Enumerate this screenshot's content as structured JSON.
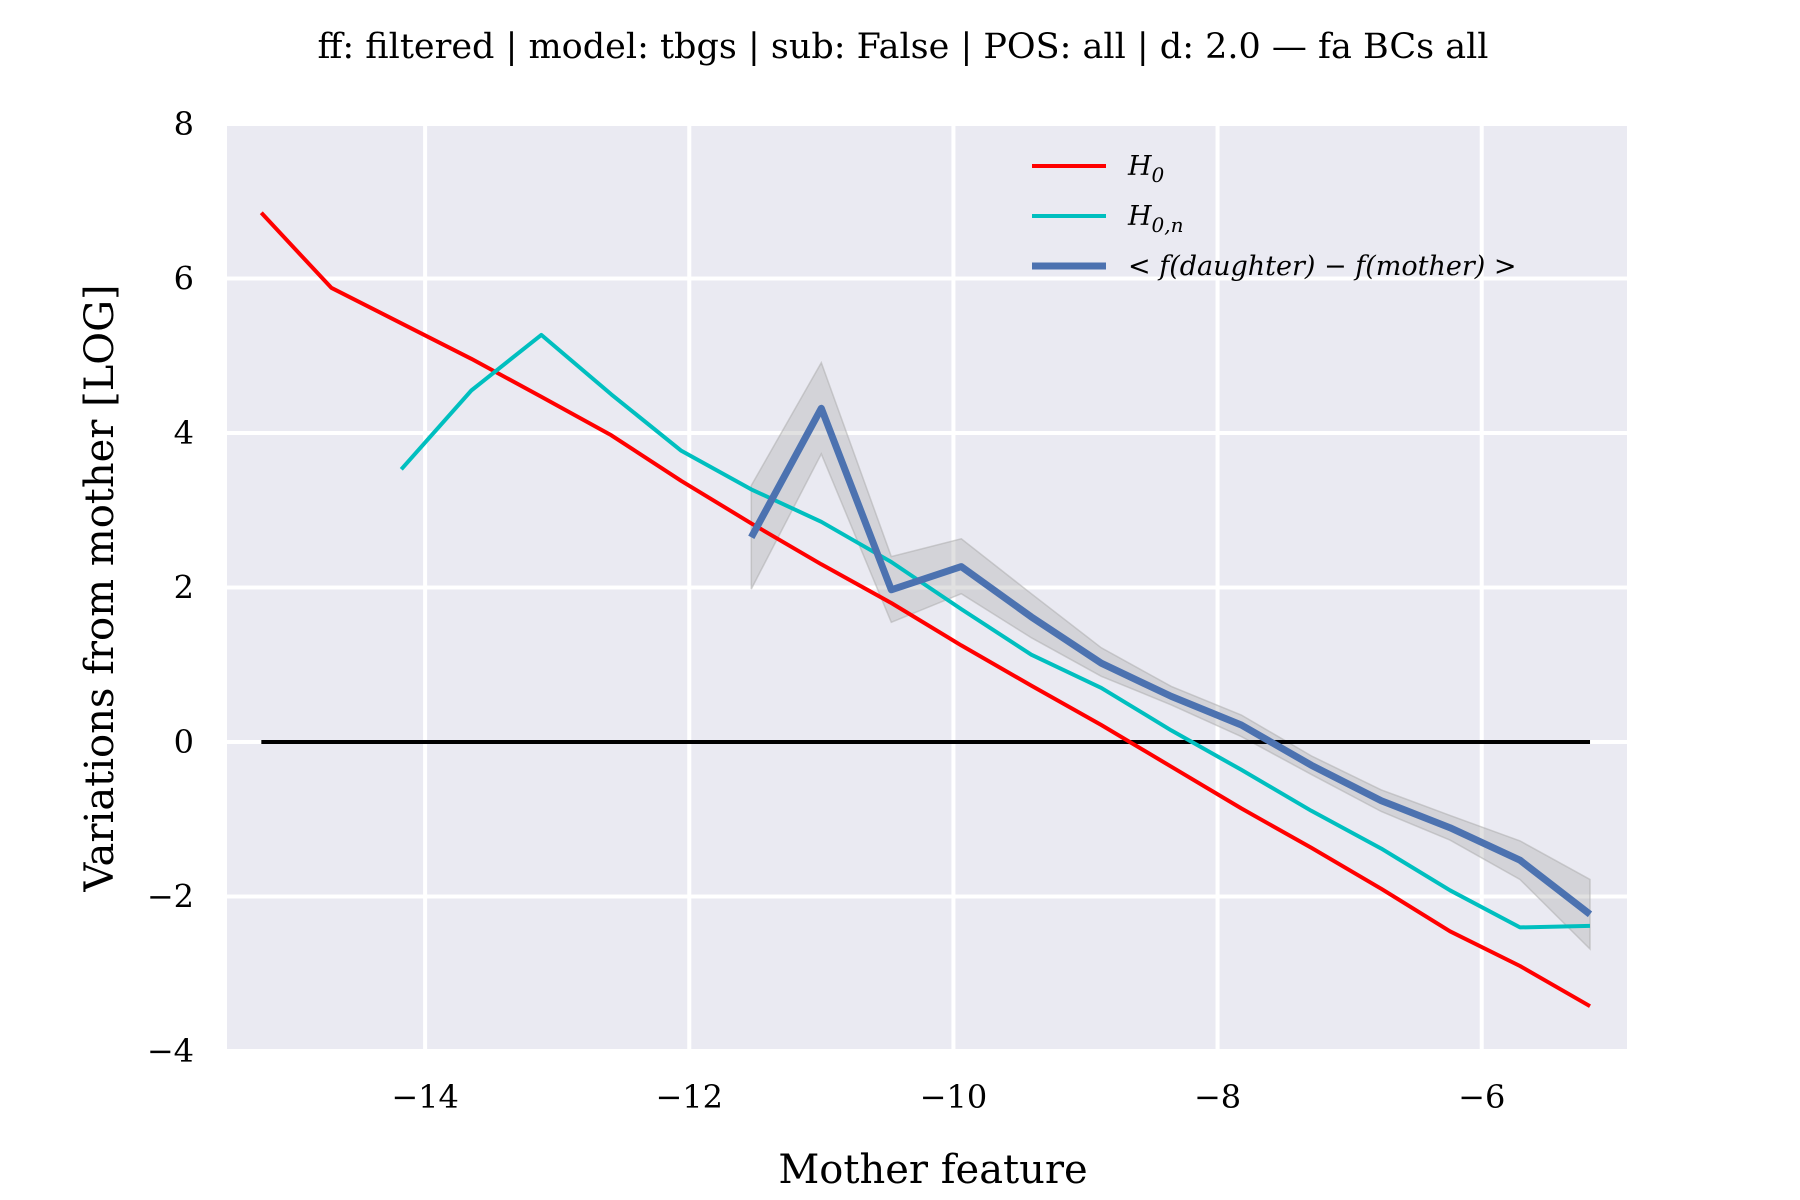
{
  "chart_data": {
    "type": "line",
    "title": "ff: filtered | model: tbgs | sub: False | POS: all | d: 2.0 — fa BCs all",
    "xlabel": "Mother feature",
    "ylabel": "Variations from mother [LOG]",
    "xlim": [
      -15.5,
      -4.9
    ],
    "ylim": [
      -4,
      8
    ],
    "xticks": [
      -14,
      -12,
      -10,
      -8,
      -6
    ],
    "yticks": [
      -4,
      -2,
      0,
      2,
      4,
      6,
      8
    ],
    "xtick_labels": [
      "−14",
      "−12",
      "−10",
      "−8",
      "−6"
    ],
    "ytick_labels": [
      "−4",
      "−2",
      "0",
      "2",
      "4",
      "6",
      "8"
    ],
    "grid": true,
    "legend_position": "top-right",
    "background_color": "#eaeaf2",
    "series": [
      {
        "name": "H_0",
        "legend_main": "H",
        "legend_sub": "0",
        "color": "#ff0000",
        "x": [
          -15.24,
          -14.71,
          -14.18,
          -13.65,
          -13.12,
          -12.59,
          -12.06,
          -11.53,
          -11.0,
          -10.47,
          -9.94,
          -9.41,
          -8.88,
          -8.35,
          -7.82,
          -7.29,
          -6.76,
          -6.24,
          -5.71,
          -5.18
        ],
        "y": [
          6.85,
          5.88,
          5.42,
          4.96,
          4.47,
          3.97,
          3.38,
          2.83,
          2.3,
          1.8,
          1.25,
          0.73,
          0.22,
          -0.32,
          -0.86,
          -1.37,
          -1.9,
          -2.45,
          -2.9,
          -3.42
        ]
      },
      {
        "name": "H_{0,n}",
        "legend_main": "H",
        "legend_sub": "0,n",
        "color": "#00bfbf",
        "x": [
          -14.18,
          -13.65,
          -13.12,
          -12.59,
          -12.06,
          -11.53,
          -11.0,
          -10.47,
          -9.94,
          -9.41,
          -8.88,
          -8.35,
          -7.82,
          -7.29,
          -6.76,
          -6.24,
          -5.71,
          -5.18
        ],
        "y": [
          3.53,
          4.55,
          5.27,
          4.5,
          3.77,
          3.27,
          2.85,
          2.33,
          1.72,
          1.13,
          0.7,
          0.15,
          -0.36,
          -0.89,
          -1.38,
          -1.92,
          -2.4,
          -2.38
        ]
      },
      {
        "name": "< f(daughter) − f(mother) >",
        "legend_main": "< f(daughter) − f(mother) >",
        "legend_sub": "",
        "color": "#4c72b0",
        "x": [
          -11.53,
          -11.0,
          -10.47,
          -9.94,
          -9.41,
          -8.88,
          -8.35,
          -7.82,
          -7.29,
          -6.76,
          -6.24,
          -5.71,
          -5.18
        ],
        "y": [
          2.65,
          4.32,
          1.97,
          2.27,
          1.62,
          1.02,
          0.59,
          0.22,
          -0.3,
          -0.76,
          -1.11,
          -1.53,
          -2.23
        ],
        "y_lower": [
          1.98,
          3.73,
          1.55,
          1.92,
          1.35,
          0.85,
          0.48,
          0.07,
          -0.42,
          -0.9,
          -1.27,
          -1.78,
          -2.68
        ],
        "y_upper": [
          3.32,
          4.91,
          2.4,
          2.63,
          1.92,
          1.22,
          0.72,
          0.35,
          -0.18,
          -0.62,
          -0.95,
          -1.28,
          -1.78
        ]
      }
    ],
    "reference_line": {
      "y": 0,
      "x": [
        -15.24,
        -5.18
      ],
      "color": "#000000"
    }
  }
}
